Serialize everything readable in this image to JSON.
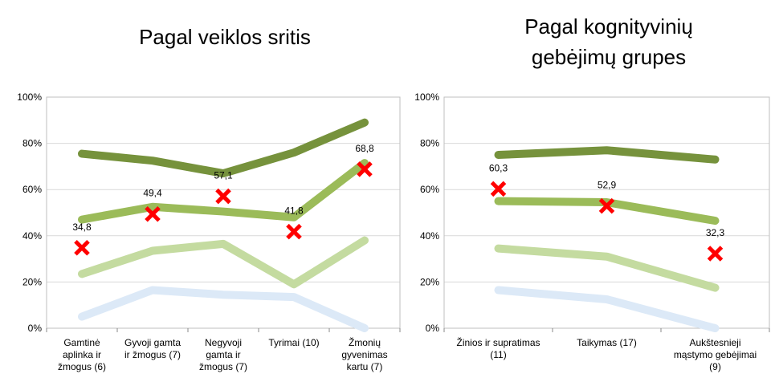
{
  "chart_data": [
    {
      "type": "line",
      "title": "Pagal veiklos sritis",
      "categories": [
        [
          "Gamtinė",
          "aplinka ir",
          "žmogus (6)"
        ],
        [
          "Gyvoji gamta",
          "ir žmogus (7)"
        ],
        [
          "Negyvoji",
          "gamta ir",
          "žmogus (7)"
        ],
        [
          "Tyrimai (10)"
        ],
        [
          "Žmonių",
          "gyvenimas",
          "kartu (7)"
        ]
      ],
      "ylim": [
        0,
        100
      ],
      "yticks": [
        {
          "value": 0,
          "label": "0%"
        },
        {
          "value": 20,
          "label": "20%"
        },
        {
          "value": 40,
          "label": "40%"
        },
        {
          "value": 60,
          "label": "60%"
        },
        {
          "value": 80,
          "label": "80%"
        },
        {
          "value": 100,
          "label": "100%"
        }
      ],
      "grid": true,
      "series": [
        {
          "color": "#dce9f7",
          "values": [
            5,
            16.5,
            14.5,
            13.5,
            0
          ]
        },
        {
          "color": "#c4dba0",
          "values": [
            23.5,
            33.5,
            36.5,
            19,
            38
          ]
        },
        {
          "color": "#9bbb59",
          "values": [
            47,
            52.5,
            50.5,
            48,
            71.5
          ]
        },
        {
          "color": "#76923c",
          "values": [
            75.5,
            72.5,
            67,
            76,
            89
          ]
        },
        {
          "type": "scatter",
          "marker": "x",
          "color": "#ff0000",
          "values": [
            34.8,
            49.4,
            57.1,
            41.8,
            68.8
          ],
          "value_labels": [
            "34,8",
            "49,4",
            "57,1",
            "41,8",
            "68,8"
          ]
        }
      ]
    },
    {
      "type": "line",
      "title": [
        "Pagal kognityvinių",
        "gebėjimų grupes"
      ],
      "categories": [
        [
          "Žinios ir supratimas",
          "(11)"
        ],
        [
          "Taikymas (17)"
        ],
        [
          "Aukštesnieji",
          "mąstymo gebėjimai",
          "(9)"
        ]
      ],
      "ylim": [
        0,
        100
      ],
      "yticks": [
        {
          "value": 0,
          "label": "0%"
        },
        {
          "value": 20,
          "label": "20%"
        },
        {
          "value": 40,
          "label": "40%"
        },
        {
          "value": 60,
          "label": "60%"
        },
        {
          "value": 80,
          "label": "80%"
        },
        {
          "value": 100,
          "label": "100%"
        }
      ],
      "grid": true,
      "series": [
        {
          "color": "#dce9f7",
          "values": [
            16.5,
            12.5,
            0
          ]
        },
        {
          "color": "#c4dba0",
          "values": [
            34.5,
            31,
            17.5
          ]
        },
        {
          "color": "#9bbb59",
          "values": [
            55,
            54.5,
            46.5
          ]
        },
        {
          "color": "#76923c",
          "values": [
            75,
            77,
            73
          ]
        },
        {
          "type": "scatter",
          "marker": "x",
          "color": "#ff0000",
          "values": [
            60.3,
            52.9,
            32.3
          ],
          "value_labels": [
            "60,3",
            "52,9",
            "32,3"
          ]
        }
      ]
    }
  ]
}
